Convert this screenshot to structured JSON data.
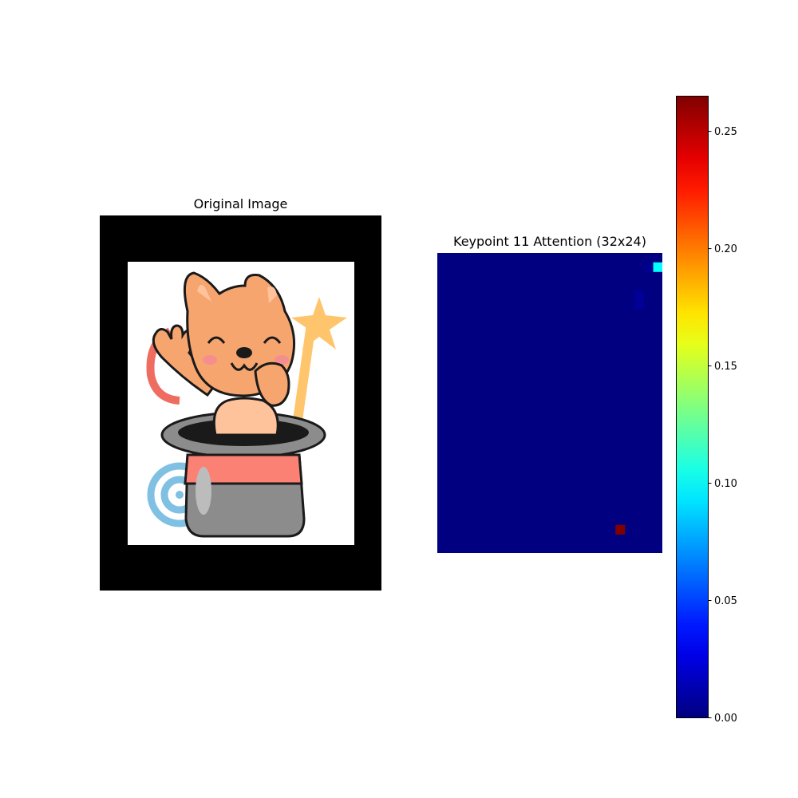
{
  "left_panel": {
    "title": "Original Image",
    "image": "cartoon fox-like character with big smile and raised hand popping out of a grey magician top hat with a red band; star wand and swirl decoration in the background; white photo framed by black padding"
  },
  "right_panel": {
    "title": "Keypoint 11 Attention (32x24)"
  },
  "colors": {
    "background": "#ffffff",
    "padding": "#000000",
    "colormap": "jet"
  },
  "chart_data": {
    "type": "heatmap",
    "title": "Keypoint 11 Attention (32x24)",
    "rows": 32,
    "cols": 24,
    "colormap": "jet",
    "vmin": 0,
    "vmax": 0.265,
    "background_value": 0,
    "hot_cells": [
      {
        "row": 1,
        "col": 23,
        "value": 0.1
      },
      {
        "row": 29,
        "col": 19,
        "value": 0.265
      },
      {
        "row": 4,
        "col": 21,
        "value": 0.006
      },
      {
        "row": 5,
        "col": 21,
        "value": 0.006
      },
      {
        "row": 1,
        "col": 22,
        "value": 0.004
      }
    ],
    "colorbar": {
      "ticks": [
        0.0,
        0.05,
        0.1,
        0.15,
        0.2,
        0.25
      ],
      "tick_labels": [
        "0.00",
        "0.05",
        "0.10",
        "0.15",
        "0.20",
        "0.25"
      ]
    }
  }
}
